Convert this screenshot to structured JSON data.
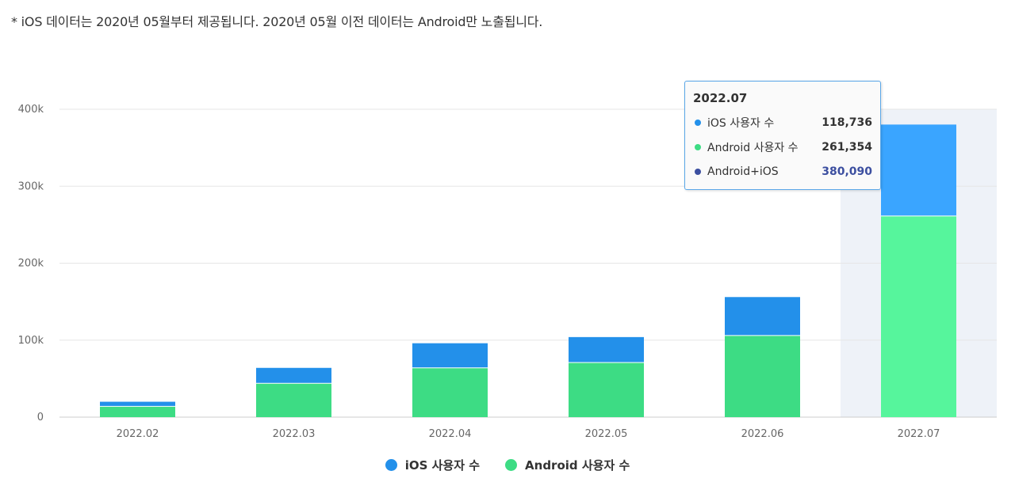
{
  "note": "* iOS 데이터는 2020년 05월부터 제공됩니다. 2020년 05월 이전 데이터는 Android만 노출됩니다.",
  "colors": {
    "ios": "#2390ea",
    "android": "#3ddc84",
    "ios_highlight": "#3aa5ff",
    "android_highlight": "#56f59c",
    "total": "#3c4fa0",
    "hover_band": "#eef2f8",
    "grid": "#e6e6e6"
  },
  "chart_data": {
    "type": "bar",
    "stacked": true,
    "categories": [
      "2022.02",
      "2022.03",
      "2022.04",
      "2022.05",
      "2022.06",
      "2022.07"
    ],
    "series": [
      {
        "name": "Android 사용자 수",
        "values": [
          14000,
          44000,
          64000,
          71000,
          106000,
          261354
        ]
      },
      {
        "name": "iOS 사용자 수",
        "values": [
          6000,
          20000,
          32000,
          33000,
          50000,
          118736
        ]
      }
    ],
    "ylim": [
      0,
      400000
    ],
    "yticks": [
      0,
      100000,
      200000,
      300000,
      400000
    ],
    "ytick_labels": [
      "0",
      "100k",
      "200k",
      "300k",
      "400k"
    ],
    "grid": true,
    "legend_placement": "bottom-center",
    "highlighted_category": "2022.07"
  },
  "legend": [
    {
      "label": "iOS 사용자 수",
      "color": "#2390ea"
    },
    {
      "label": "Android 사용자 수",
      "color": "#3ddc84"
    }
  ],
  "tooltip": {
    "title": "2022.07",
    "rows": [
      {
        "label": "iOS 사용자 수",
        "value": "118,736",
        "color": "#2390ea"
      },
      {
        "label": "Android 사용자 수",
        "value": "261,354",
        "color": "#3ddc84"
      },
      {
        "label": "Android+iOS",
        "value": "380,090",
        "color": "#3c4fa0"
      }
    ]
  }
}
